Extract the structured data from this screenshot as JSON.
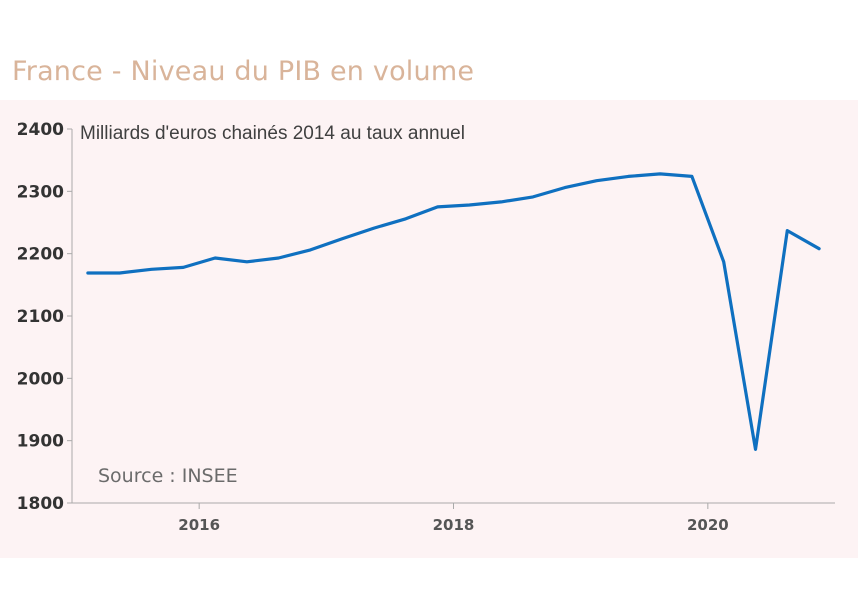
{
  "header": {
    "title": "France - Niveau du PIB en volume"
  },
  "colors": {
    "title": "#d9b49a",
    "panel_background": "#fdf3f4",
    "series_line": "#0f70c0",
    "axis": "#aaaaaa"
  },
  "chart_data": {
    "type": "line",
    "title": "France - Niveau du PIB en volume",
    "unit_label": "Milliards d'euros chainés  2014 au taux annuel",
    "source": "Source : INSEE",
    "xlabel": "",
    "ylabel": "",
    "ylim": [
      1800,
      2400
    ],
    "yticks": [
      1800,
      1900,
      2000,
      2100,
      2200,
      2300,
      2400
    ],
    "xlim": [
      2015.0,
      2021.0
    ],
    "xticks": [
      2016,
      2018,
      2020
    ],
    "xtick_labels": [
      "2016",
      "2018",
      "2020"
    ],
    "grid": false,
    "series": [
      {
        "x": [
          2015.125,
          2015.375,
          2015.625,
          2015.875,
          2016.125,
          2016.375,
          2016.625,
          2016.875,
          2017.125,
          2017.375,
          2017.625,
          2017.875,
          2018.125,
          2018.375,
          2018.625,
          2018.875,
          2019.125,
          2019.375,
          2019.625,
          2019.875,
          2020.125,
          2020.375,
          2020.625,
          2020.875
        ],
        "values": [
          2169,
          2169,
          2175,
          2178,
          2193,
          2187,
          2193,
          2206,
          2224,
          2241,
          2256,
          2275,
          2278,
          2283,
          2291,
          2306,
          2317,
          2324,
          2328,
          2324,
          2187,
          1886,
          2237,
          2208
        ]
      }
    ]
  }
}
